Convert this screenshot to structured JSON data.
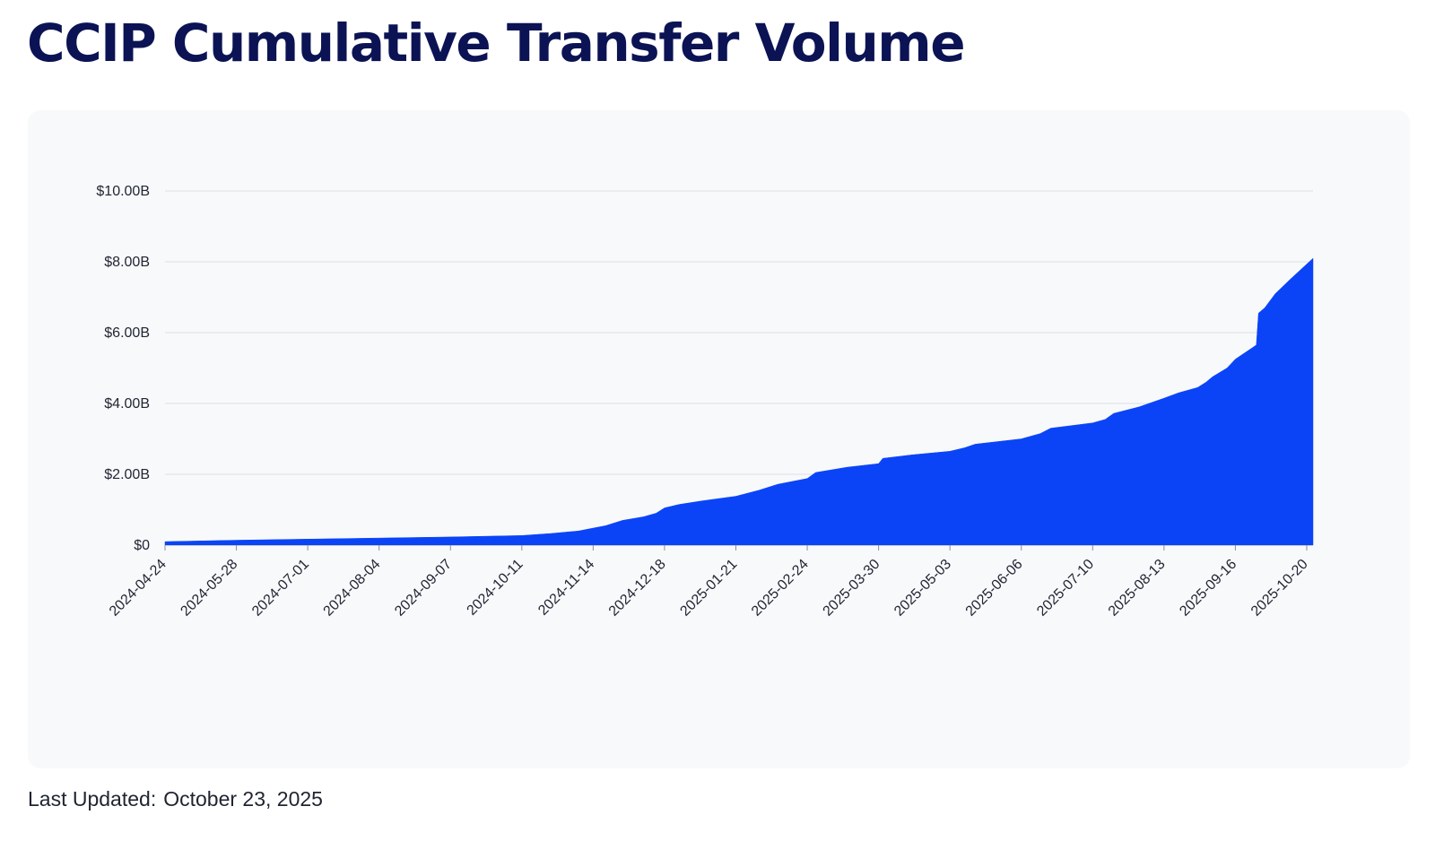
{
  "page": {
    "title": "CCIP Cumulative Transfer Volume",
    "last_updated_label": "Last Updated:",
    "last_updated_value": "October 23, 2025"
  },
  "colors": {
    "title": "#0b1354",
    "area_fill": "#0b44f7",
    "grid": "#dcdee4",
    "panel_bg": "#f8f9fb"
  },
  "chart_data": {
    "type": "area",
    "title": "CCIP Cumulative Transfer Volume",
    "xlabel": "",
    "ylabel": "",
    "x_range": [
      "2024-04-24",
      "2025-10-23"
    ],
    "ylim": [
      0,
      10
    ],
    "y_unit": "billions USD",
    "y_ticks": [
      {
        "value": 0,
        "label": "$0"
      },
      {
        "value": 2,
        "label": "$2.00B"
      },
      {
        "value": 4,
        "label": "$4.00B"
      },
      {
        "value": 6,
        "label": "$6.00B"
      },
      {
        "value": 8,
        "label": "$8.00B"
      },
      {
        "value": 10,
        "label": "$10.00B"
      }
    ],
    "x_ticks": [
      "2024-04-24",
      "2024-05-28",
      "2024-07-01",
      "2024-08-04",
      "2024-09-07",
      "2024-10-11",
      "2024-11-14",
      "2024-12-18",
      "2025-01-21",
      "2025-02-24",
      "2025-03-30",
      "2025-05-03",
      "2025-06-06",
      "2025-07-10",
      "2025-08-13",
      "2025-09-16",
      "2025-10-20"
    ],
    "grid": true,
    "legend": "none",
    "series": [
      {
        "x": [
          "2024-04-24",
          "2024-05-28",
          "2024-07-01",
          "2024-08-04",
          "2024-09-07",
          "2024-10-11",
          "2024-10-25",
          "2024-11-07",
          "2024-11-14",
          "2024-11-20",
          "2024-11-28",
          "2024-12-08",
          "2024-12-14",
          "2024-12-18",
          "2024-12-25",
          "2025-01-05",
          "2025-01-21",
          "2025-02-01",
          "2025-02-10",
          "2025-02-24",
          "2025-02-28",
          "2025-03-15",
          "2025-03-30",
          "2025-04-01",
          "2025-04-15",
          "2025-05-03",
          "2025-05-10",
          "2025-05-15",
          "2025-06-06",
          "2025-06-15",
          "2025-06-20",
          "2025-07-10",
          "2025-07-16",
          "2025-07-20",
          "2025-08-01",
          "2025-08-13",
          "2025-08-20",
          "2025-08-29",
          "2025-09-02",
          "2025-09-05",
          "2025-09-12",
          "2025-09-16",
          "2025-09-26",
          "2025-09-27",
          "2025-09-30",
          "2025-10-05",
          "2025-10-12",
          "2025-10-23"
        ],
        "values": [
          0.1,
          0.14,
          0.17,
          0.2,
          0.23,
          0.27,
          0.33,
          0.4,
          0.48,
          0.55,
          0.7,
          0.8,
          0.9,
          1.05,
          1.15,
          1.25,
          1.38,
          1.55,
          1.72,
          1.88,
          2.05,
          2.2,
          2.3,
          2.45,
          2.55,
          2.65,
          2.75,
          2.85,
          3.0,
          3.15,
          3.3,
          3.45,
          3.55,
          3.72,
          3.9,
          4.15,
          4.3,
          4.45,
          4.6,
          4.75,
          5.0,
          5.25,
          5.65,
          6.55,
          6.7,
          7.1,
          7.5,
          8.1
        ]
      }
    ]
  }
}
